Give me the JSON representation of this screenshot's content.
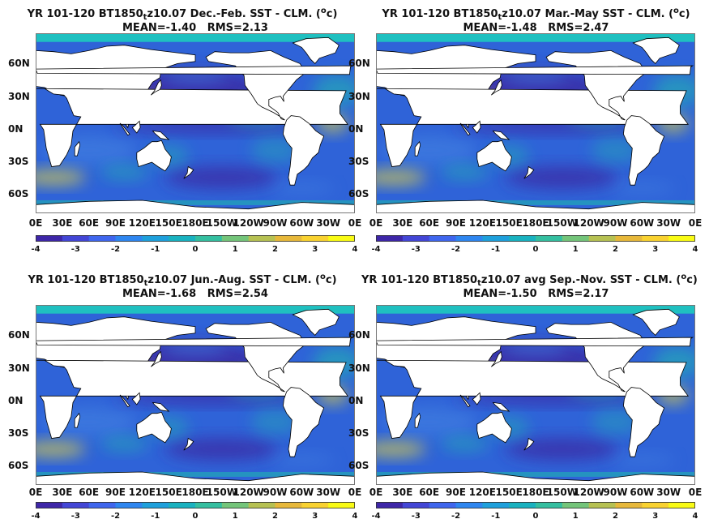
{
  "colors": {
    "ocean_deep": "#3b2fa8",
    "ocean_mid": "#3f7ee0",
    "ocean_base": "#2f63d8",
    "teal": "#20b4b0",
    "cyan_band": "#1fc0c0",
    "yellow": "#f5dd30",
    "land": "#ffffff",
    "colormap": [
      "#3e26a8",
      "#4346d6",
      "#3f66ee",
      "#2e86f0",
      "#1ea0dc",
      "#19b2c0",
      "#34bfa0",
      "#74c57a",
      "#b6c152",
      "#e7b83a",
      "#f9d230",
      "#f9fb14"
    ]
  },
  "panels": [
    {
      "title_prefix": "YR 101-120 BT1850",
      "title_sub": "t",
      "title_mid": "z10.07  Dec.-Feb. SST - CLM. (",
      "title_sup": "o",
      "title_end": "c)",
      "mean_label": "MEAN=-1.40",
      "rms_label": "RMS=2.13"
    },
    {
      "title_prefix": "YR 101-120 BT1850",
      "title_sub": "t",
      "title_mid": "z10.07 Mar.-May SST - CLM. (",
      "title_sup": "o",
      "title_end": "c)",
      "mean_label": "MEAN=-1.48",
      "rms_label": "RMS=2.47"
    },
    {
      "title_prefix": "YR 101-120 BT1850",
      "title_sub": "t",
      "title_mid": "z10.07 Jun.-Aug. SST - CLM. (",
      "title_sup": "o",
      "title_end": "c)",
      "mean_label": "MEAN=-1.68",
      "rms_label": "RMS=2.54"
    },
    {
      "title_prefix": "YR 101-120 BT1850",
      "title_sub": "t",
      "title_mid": "z10.07 avg Sep.-Nov. SST - CLM. (",
      "title_sup": "o",
      "title_end": "c)",
      "mean_label": "MEAN=-1.50",
      "rms_label": "RMS=2.17"
    }
  ],
  "chart_data": [
    {
      "type": "heatmap",
      "season": "Dec.-Feb.",
      "mean": -1.4,
      "rms": 2.13,
      "x_ticks": [
        "0E",
        "30E",
        "60E",
        "90E",
        "120E",
        "150E",
        "180E",
        "150W",
        "120W",
        "90W",
        "60W",
        "30W",
        "0E"
      ],
      "y_ticks": [
        "60N",
        "30N",
        "0N",
        "30S",
        "60S"
      ],
      "colorbar_ticks": [
        "-4",
        "-3",
        "-2",
        "-1",
        "0",
        "1",
        "2",
        "3",
        "4"
      ],
      "colorbar_range": [
        -4,
        4
      ]
    },
    {
      "type": "heatmap",
      "season": "Mar.-May",
      "mean": -1.48,
      "rms": 2.47,
      "x_ticks": [
        "0E",
        "30E",
        "60E",
        "90E",
        "120E",
        "150E",
        "180E",
        "150W",
        "120W",
        "90W",
        "60W",
        "30W",
        "0E"
      ],
      "y_ticks": [
        "60N",
        "30N",
        "0N",
        "30S",
        "60S"
      ],
      "colorbar_ticks": [
        "-4",
        "-3",
        "-2",
        "-1",
        "0",
        "1",
        "2",
        "3",
        "4"
      ],
      "colorbar_range": [
        -4,
        4
      ]
    },
    {
      "type": "heatmap",
      "season": "Jun.-Aug.",
      "mean": -1.68,
      "rms": 2.54,
      "x_ticks": [
        "0E",
        "30E",
        "60E",
        "90E",
        "120E",
        "150E",
        "180E",
        "150W",
        "120W",
        "90W",
        "60W",
        "30W",
        "0E"
      ],
      "y_ticks": [
        "60N",
        "30N",
        "0N",
        "30S",
        "60S"
      ],
      "colorbar_ticks": [
        "-4",
        "-3",
        "-2",
        "-1",
        "0",
        "1",
        "2",
        "3",
        "4"
      ],
      "colorbar_range": [
        -4,
        4
      ]
    },
    {
      "type": "heatmap",
      "season": "Sep.-Nov.",
      "mean": -1.5,
      "rms": 2.17,
      "x_ticks": [
        "0E",
        "30E",
        "60E",
        "90E",
        "120E",
        "150E",
        "180E",
        "150W",
        "120W",
        "90W",
        "60W",
        "30W",
        "0E"
      ],
      "y_ticks": [
        "60N",
        "30N",
        "0N",
        "30S",
        "60S"
      ],
      "colorbar_ticks": [
        "-4",
        "-3",
        "-2",
        "-1",
        "0",
        "1",
        "2",
        "3",
        "4"
      ],
      "colorbar_range": [
        -4,
        4
      ]
    }
  ]
}
